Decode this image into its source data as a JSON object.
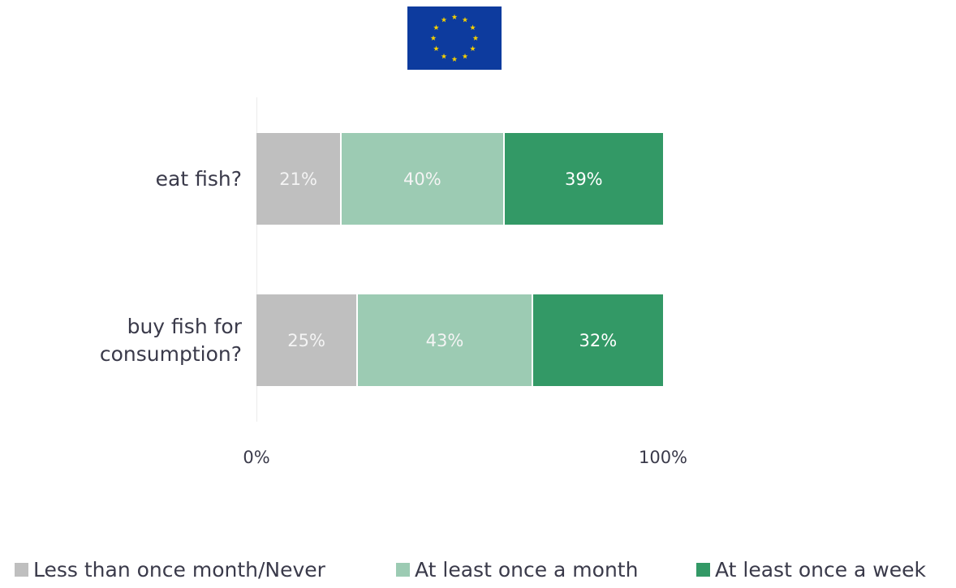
{
  "chart_data": {
    "type": "bar",
    "orientation": "horizontal",
    "stacked": true,
    "categories": [
      "eat fish?",
      "buy fish for\nconsumption?"
    ],
    "series": [
      {
        "name": "Less than once  month/Never",
        "color": "#bfbfbf",
        "values": [
          21,
          25
        ],
        "labels": [
          "21%",
          "25%"
        ]
      },
      {
        "name": "At least once a month",
        "color": "#9ccbb3",
        "values": [
          40,
          43
        ],
        "labels": [
          "40%",
          "43%"
        ]
      },
      {
        "name": "At least once a week",
        "color": "#339966",
        "values": [
          39,
          32
        ],
        "labels": [
          "39%",
          "32%"
        ]
      }
    ],
    "xlim": [
      0,
      100
    ],
    "xticks": [
      "0%",
      "100%"
    ],
    "grid": false,
    "legend_position": "bottom"
  },
  "flag": {
    "icon": "eu-flag-icon",
    "background": "#0d3b9e",
    "star_color": "#f5d000"
  }
}
